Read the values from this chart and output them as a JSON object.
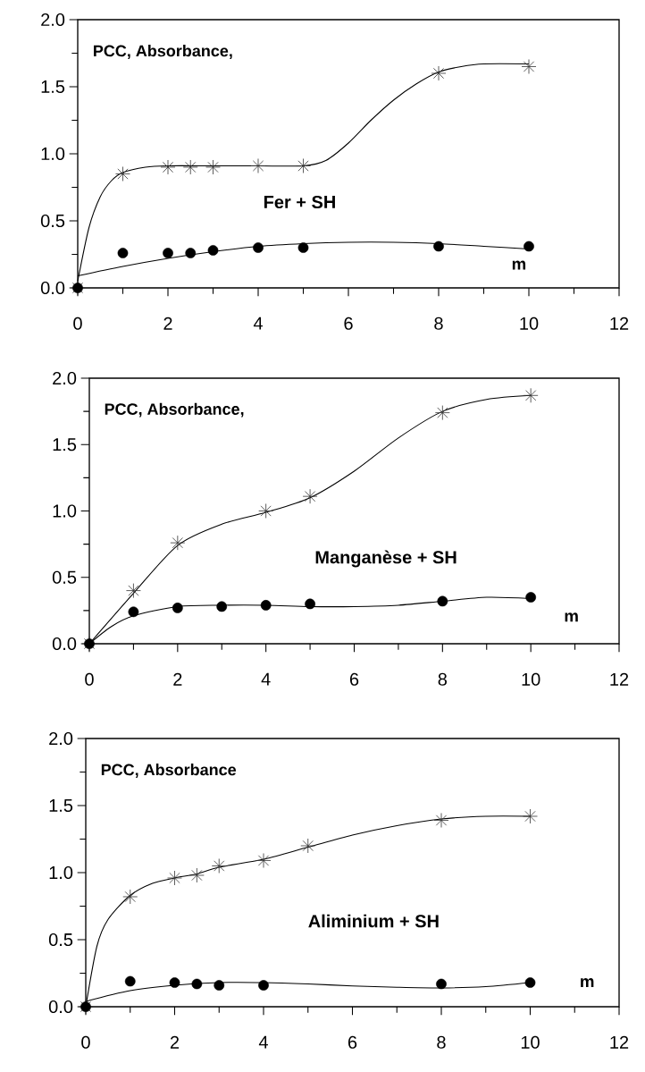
{
  "chart_data": [
    {
      "type": "scatter",
      "xlabel": "m",
      "ylabel": "PCC, Absorbance,",
      "annotations": [
        "Fer + SH"
      ],
      "xlim": [
        0,
        12
      ],
      "ylim": [
        0,
        2.0
      ],
      "xticks": [
        0,
        2,
        4,
        6,
        8,
        10,
        12
      ],
      "yticks": [
        {
          "value": 0,
          "label": "0.0"
        },
        {
          "value": 0.5,
          "label": "0.5"
        },
        {
          "value": 1.0,
          "label": "1.0"
        },
        {
          "value": 1.5,
          "label": "1.5"
        },
        {
          "value": 2.0,
          "label": "2.0"
        }
      ],
      "series": [
        {
          "marker": "cross",
          "color": "#333333",
          "x": [
            0,
            1,
            2,
            2.5,
            3,
            4,
            5,
            8,
            10
          ],
          "values": [
            0,
            0.85,
            0.9,
            0.9,
            0.9,
            0.91,
            0.91,
            1.6,
            1.65
          ]
        },
        {
          "marker": "circle",
          "color": "#000000",
          "x": [
            0,
            1,
            2,
            2.5,
            3,
            4,
            5,
            8,
            10
          ],
          "values": [
            0,
            0.26,
            0.26,
            0.26,
            0.28,
            0.3,
            0.3,
            0.31,
            0.31
          ]
        },
        {
          "type": "line",
          "marker": "none",
          "color": "#000000",
          "x": [
            0,
            0.25,
            0.5,
            0.75,
            1,
            1.5,
            2,
            3,
            4,
            5,
            5.5,
            6,
            6.5,
            7,
            7.5,
            8,
            8.5,
            9,
            10
          ],
          "values": [
            0.05,
            0.45,
            0.68,
            0.8,
            0.86,
            0.9,
            0.91,
            0.91,
            0.91,
            0.91,
            0.95,
            1.08,
            1.25,
            1.4,
            1.52,
            1.61,
            1.65,
            1.67,
            1.67
          ]
        },
        {
          "type": "line",
          "marker": "none",
          "color": "#000000",
          "x": [
            0,
            1,
            2,
            3,
            4,
            5,
            6,
            7,
            8,
            9,
            10
          ],
          "values": [
            0.09,
            0.16,
            0.22,
            0.27,
            0.31,
            0.33,
            0.34,
            0.34,
            0.33,
            0.31,
            0.29
          ]
        }
      ]
    },
    {
      "type": "scatter",
      "xlabel": "m",
      "ylabel": "PCC, Absorbance,",
      "annotations": [
        "Manganèse + SH"
      ],
      "xlim": [
        0,
        12
      ],
      "ylim": [
        0,
        2.0
      ],
      "xticks": [
        0,
        2,
        4,
        6,
        8,
        10,
        12
      ],
      "yticks": [
        {
          "value": 0,
          "label": "0.0"
        },
        {
          "value": 0.5,
          "label": "0.5"
        },
        {
          "value": 1.0,
          "label": "1.0"
        },
        {
          "value": 1.5,
          "label": "1.5"
        },
        {
          "value": 2.0,
          "label": "2.0"
        }
      ],
      "series": [
        {
          "marker": "cross",
          "color": "#333333",
          "x": [
            0,
            1,
            2,
            4,
            5,
            8,
            10
          ],
          "values": [
            0,
            0.4,
            0.76,
            1.0,
            1.11,
            1.74,
            1.87
          ]
        },
        {
          "marker": "circle",
          "color": "#000000",
          "x": [
            0,
            1,
            2,
            3,
            4,
            5,
            8,
            10
          ],
          "values": [
            0,
            0.24,
            0.27,
            0.28,
            0.29,
            0.3,
            0.32,
            0.35
          ]
        },
        {
          "type": "line",
          "marker": "none",
          "color": "#000000",
          "x": [
            0,
            1,
            2,
            3,
            4,
            5,
            6,
            7,
            8,
            9,
            10
          ],
          "values": [
            0,
            0.38,
            0.74,
            0.9,
            0.99,
            1.1,
            1.3,
            1.55,
            1.75,
            1.84,
            1.87
          ]
        },
        {
          "type": "line",
          "marker": "none",
          "color": "#000000",
          "x": [
            0,
            0.5,
            1,
            2,
            3,
            4,
            5,
            6,
            7,
            8,
            9,
            10
          ],
          "values": [
            0,
            0.13,
            0.21,
            0.28,
            0.29,
            0.29,
            0.28,
            0.28,
            0.29,
            0.32,
            0.35,
            0.34
          ]
        }
      ]
    },
    {
      "type": "scatter",
      "xlabel": "m",
      "ylabel": "PCC, Absorbance",
      "annotations": [
        "Aliminium + SH"
      ],
      "xlim": [
        0,
        12
      ],
      "ylim": [
        0,
        2.0
      ],
      "xticks": [
        0,
        2,
        4,
        6,
        8,
        10,
        12
      ],
      "yticks": [
        {
          "value": 0,
          "label": "0.0"
        },
        {
          "value": 0.5,
          "label": "0.5"
        },
        {
          "value": 1.0,
          "label": "1.0"
        },
        {
          "value": 1.5,
          "label": "1.5"
        },
        {
          "value": 2.0,
          "label": "2.0"
        }
      ],
      "series": [
        {
          "marker": "cross",
          "color": "#333333",
          "x": [
            0,
            1,
            2,
            2.5,
            3,
            4,
            5,
            8,
            10
          ],
          "values": [
            0,
            0.82,
            0.96,
            0.98,
            1.05,
            1.09,
            1.2,
            1.39,
            1.42
          ]
        },
        {
          "marker": "circle",
          "color": "#000000",
          "x": [
            0,
            1,
            2,
            2.5,
            3,
            4,
            8,
            10
          ],
          "values": [
            0,
            0.19,
            0.18,
            0.17,
            0.16,
            0.16,
            0.17,
            0.18
          ]
        },
        {
          "type": "line",
          "marker": "none",
          "color": "#000000",
          "x": [
            0,
            0.25,
            0.5,
            1,
            1.5,
            2,
            2.5,
            3,
            4,
            5,
            6,
            7,
            8,
            9,
            10
          ],
          "values": [
            0,
            0.45,
            0.65,
            0.83,
            0.92,
            0.96,
            0.99,
            1.04,
            1.1,
            1.19,
            1.28,
            1.35,
            1.4,
            1.42,
            1.42
          ]
        },
        {
          "type": "line",
          "marker": "none",
          "color": "#000000",
          "x": [
            0,
            1,
            2,
            3,
            4,
            5,
            6,
            7,
            8,
            9,
            10
          ],
          "values": [
            0.04,
            0.12,
            0.16,
            0.18,
            0.18,
            0.17,
            0.155,
            0.145,
            0.14,
            0.15,
            0.18
          ]
        }
      ]
    }
  ]
}
